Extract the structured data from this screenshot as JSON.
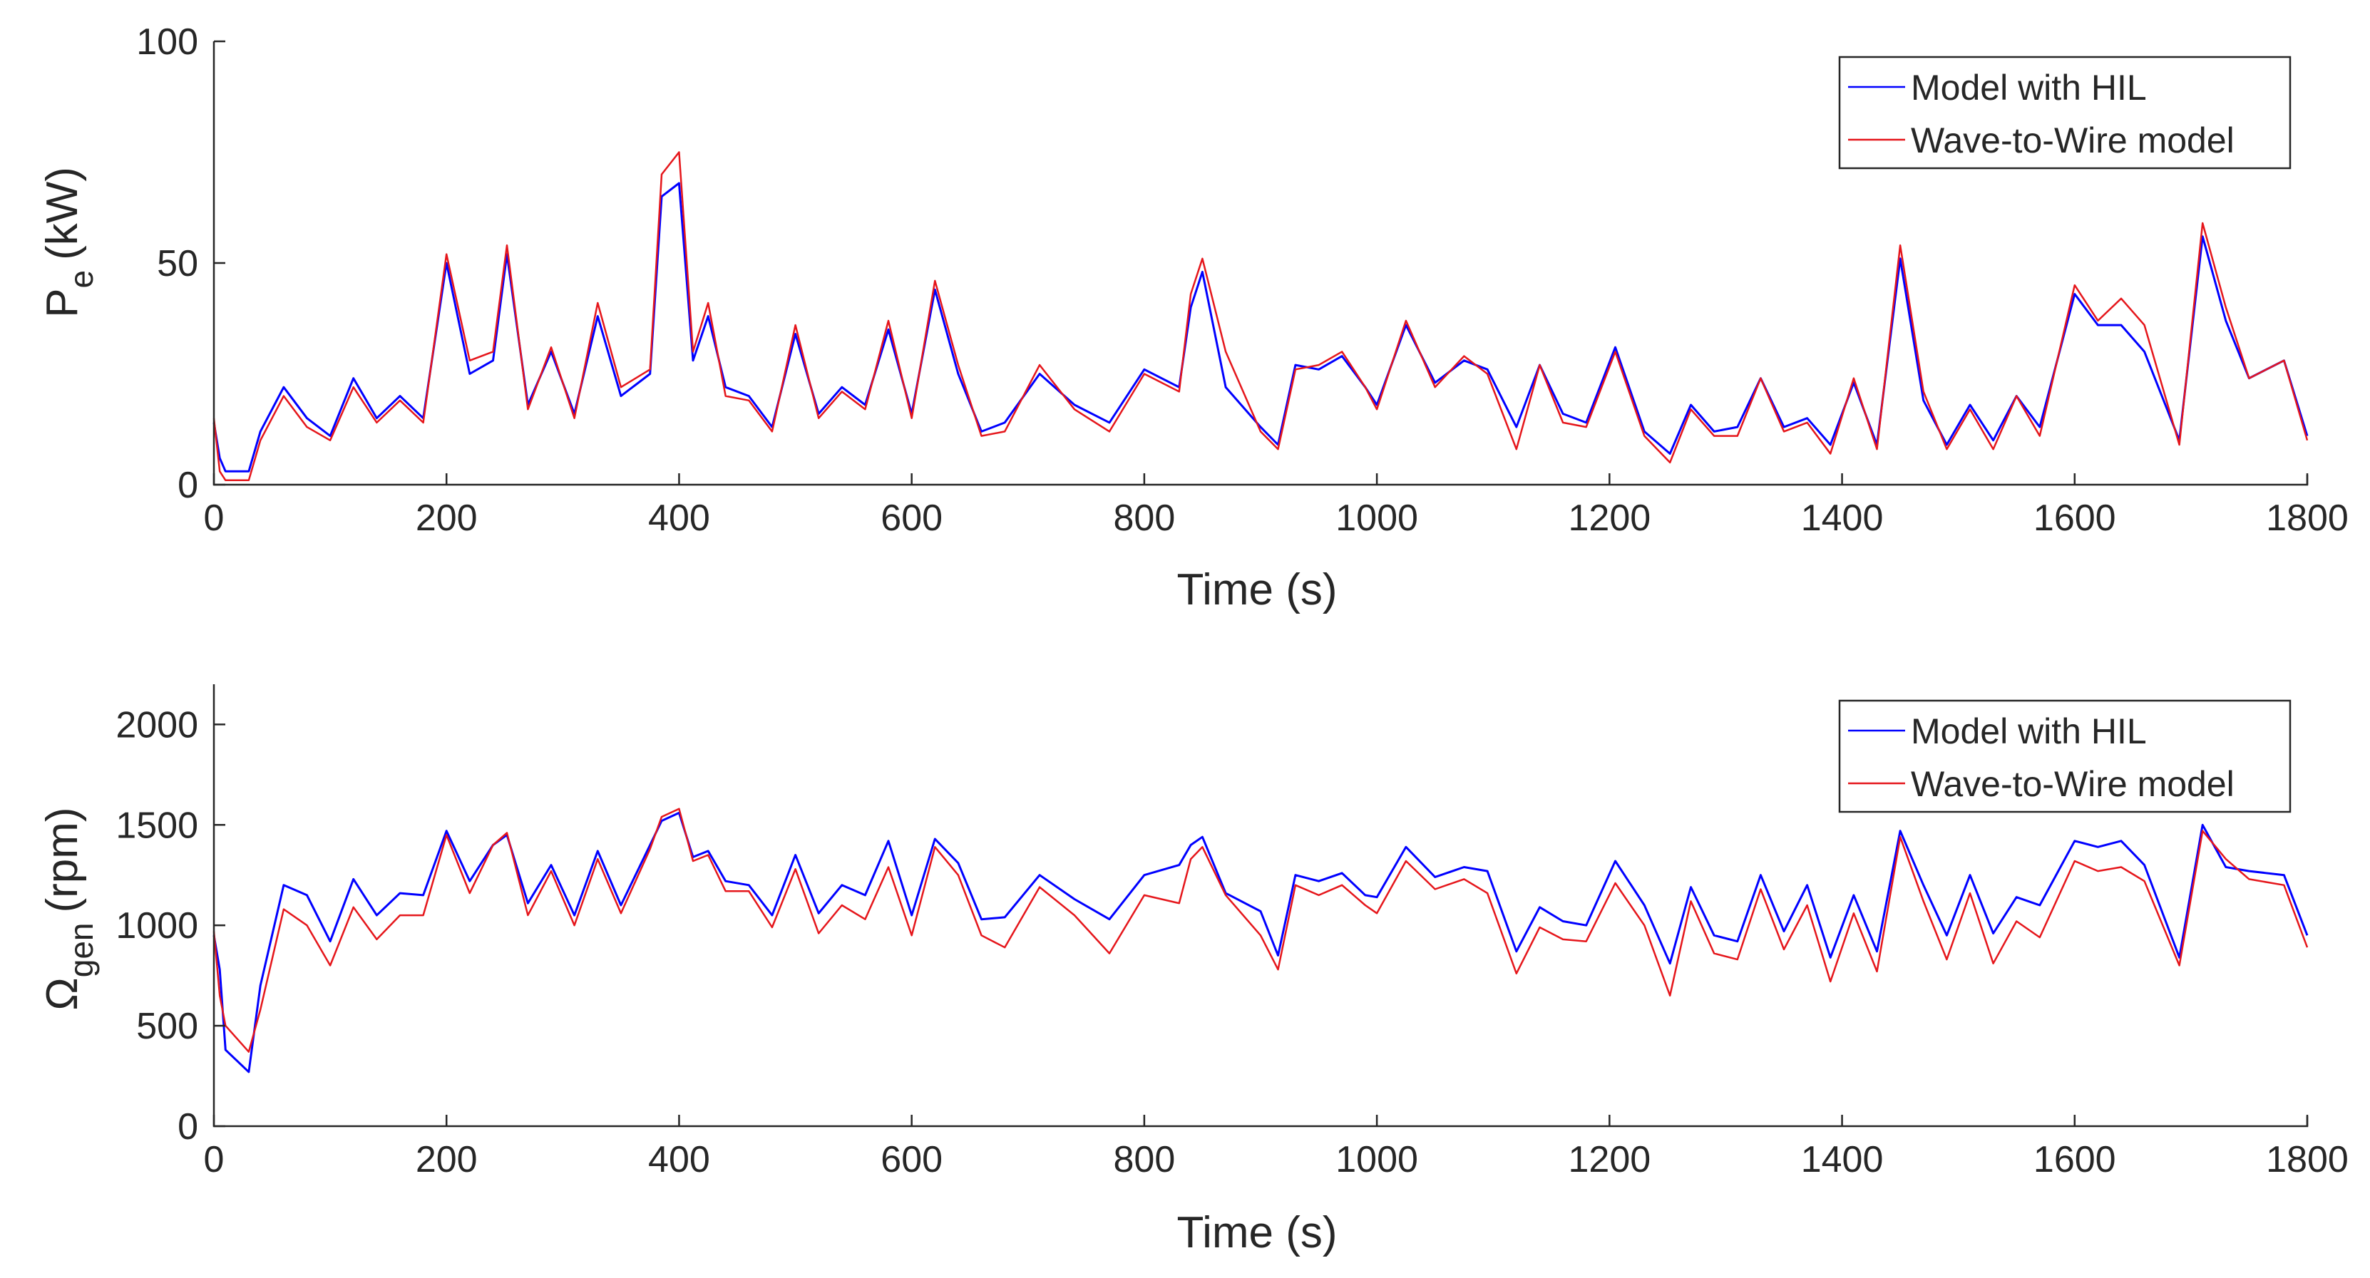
{
  "chart_data": [
    {
      "type": "line",
      "title": "",
      "xlabel": "Time (s)",
      "ylabel": "P",
      "ylabel_subscript": "e",
      "ylabel_unit": "(kW)",
      "xlim": [
        0,
        1800
      ],
      "ylim": [
        0,
        100
      ],
      "xticks": [
        0,
        200,
        400,
        600,
        800,
        1000,
        1200,
        1400,
        1600,
        1800
      ],
      "yticks": [
        0,
        50,
        100
      ],
      "xtick_labels": [
        "0",
        "200",
        "400",
        "600",
        "800",
        "1000",
        "1200",
        "1400",
        "1600",
        "1800"
      ],
      "ytick_labels": [
        "0",
        "50",
        "100"
      ],
      "legend_position": "top-right",
      "x": [
        0,
        5,
        10,
        30,
        40,
        60,
        80,
        100,
        120,
        140,
        160,
        180,
        200,
        220,
        240,
        252,
        270,
        290,
        310,
        330,
        350,
        375,
        385,
        400,
        412,
        425,
        440,
        460,
        480,
        500,
        520,
        540,
        560,
        580,
        600,
        620,
        640,
        660,
        680,
        710,
        740,
        770,
        800,
        830,
        840,
        850,
        870,
        900,
        915,
        930,
        950,
        970,
        990,
        1000,
        1025,
        1050,
        1075,
        1095,
        1120,
        1140,
        1160,
        1180,
        1205,
        1230,
        1252,
        1270,
        1290,
        1310,
        1330,
        1350,
        1370,
        1390,
        1410,
        1430,
        1450,
        1470,
        1490,
        1510,
        1530,
        1550,
        1570,
        1600,
        1620,
        1640,
        1660,
        1690,
        1710,
        1730,
        1750,
        1780,
        1800
      ],
      "series": [
        {
          "name": "Model with HIL",
          "color": "#0000ff",
          "values": [
            14,
            6,
            3,
            3,
            12,
            22,
            15,
            11,
            24,
            15,
            20,
            15,
            50,
            25,
            28,
            52,
            18,
            30,
            16,
            38,
            20,
            25,
            65,
            68,
            28,
            38,
            22,
            20,
            13,
            34,
            16,
            22,
            18,
            35,
            16,
            44,
            25,
            12,
            14,
            25,
            18,
            14,
            26,
            22,
            40,
            48,
            22,
            13,
            9,
            27,
            26,
            29,
            22,
            18,
            36,
            23,
            28,
            26,
            13,
            27,
            16,
            14,
            31,
            12,
            7,
            18,
            12,
            13,
            24,
            13,
            15,
            9,
            23,
            9,
            51,
            19,
            9,
            18,
            10,
            20,
            13,
            43,
            36,
            36,
            30,
            10,
            56,
            37,
            24,
            28,
            11
          ]
        },
        {
          "name": "Wave-to-Wire model",
          "color": "#e5161b",
          "values": [
            15,
            3,
            1,
            1,
            10,
            20,
            13,
            10,
            22,
            14,
            19,
            14,
            52,
            28,
            30,
            54,
            17,
            31,
            15,
            41,
            22,
            26,
            70,
            75,
            30,
            41,
            20,
            19,
            12,
            36,
            15,
            21,
            17,
            37,
            15,
            46,
            27,
            11,
            12,
            27,
            17,
            12,
            25,
            21,
            43,
            51,
            30,
            12,
            8,
            26,
            27,
            30,
            22,
            17,
            37,
            22,
            29,
            25,
            8,
            27,
            14,
            13,
            30,
            11,
            5,
            17,
            11,
            11,
            24,
            12,
            14,
            7,
            24,
            8,
            54,
            21,
            8,
            17,
            8,
            20,
            11,
            45,
            37,
            42,
            36,
            9,
            59,
            40,
            24,
            28,
            10
          ]
        }
      ]
    },
    {
      "type": "line",
      "title": "",
      "xlabel": "Time (s)",
      "ylabel": "Ω",
      "ylabel_subscript": "gen",
      "ylabel_unit": "(rpm)",
      "xlim": [
        0,
        1800
      ],
      "ylim": [
        0,
        2200
      ],
      "xticks": [
        0,
        200,
        400,
        600,
        800,
        1000,
        1200,
        1400,
        1600,
        1800
      ],
      "yticks": [
        0,
        500,
        1000,
        1500,
        2000
      ],
      "xtick_labels": [
        "0",
        "200",
        "400",
        "600",
        "800",
        "1000",
        "1200",
        "1400",
        "1600",
        "1800"
      ],
      "ytick_labels": [
        "0",
        "500",
        "1000",
        "1500",
        "2000"
      ],
      "legend_position": "top-right",
      "x": [
        0,
        5,
        10,
        30,
        40,
        60,
        80,
        100,
        120,
        140,
        160,
        180,
        200,
        220,
        240,
        252,
        270,
        290,
        310,
        330,
        350,
        375,
        385,
        400,
        412,
        425,
        440,
        460,
        480,
        500,
        520,
        540,
        560,
        580,
        600,
        620,
        640,
        660,
        680,
        710,
        740,
        770,
        800,
        830,
        840,
        850,
        870,
        900,
        915,
        930,
        950,
        970,
        990,
        1000,
        1025,
        1050,
        1075,
        1095,
        1120,
        1140,
        1160,
        1180,
        1205,
        1230,
        1252,
        1270,
        1290,
        1310,
        1330,
        1350,
        1370,
        1390,
        1410,
        1430,
        1450,
        1470,
        1490,
        1510,
        1530,
        1550,
        1570,
        1600,
        1620,
        1640,
        1660,
        1690,
        1710,
        1730,
        1750,
        1780,
        1800
      ],
      "series": [
        {
          "name": "Model with HIL",
          "color": "#0000ff",
          "values": [
            950,
            780,
            380,
            270,
            700,
            1200,
            1150,
            920,
            1230,
            1050,
            1160,
            1150,
            1470,
            1220,
            1400,
            1450,
            1110,
            1300,
            1050,
            1370,
            1100,
            1400,
            1520,
            1560,
            1340,
            1370,
            1220,
            1200,
            1050,
            1350,
            1060,
            1200,
            1150,
            1420,
            1050,
            1430,
            1310,
            1030,
            1040,
            1250,
            1130,
            1030,
            1250,
            1300,
            1400,
            1440,
            1160,
            1070,
            850,
            1250,
            1220,
            1260,
            1150,
            1140,
            1390,
            1240,
            1290,
            1270,
            870,
            1090,
            1020,
            1000,
            1320,
            1100,
            810,
            1190,
            950,
            920,
            1250,
            970,
            1200,
            840,
            1150,
            870,
            1470,
            1200,
            950,
            1250,
            960,
            1140,
            1100,
            1420,
            1390,
            1420,
            1300,
            840,
            1500,
            1290,
            1270,
            1250,
            950
          ]
        },
        {
          "name": "Wave-to-Wire model",
          "color": "#e5161b",
          "values": [
            970,
            650,
            500,
            370,
            580,
            1080,
            1000,
            800,
            1090,
            930,
            1050,
            1050,
            1450,
            1160,
            1400,
            1460,
            1050,
            1270,
            1000,
            1330,
            1060,
            1380,
            1540,
            1580,
            1320,
            1350,
            1170,
            1170,
            990,
            1280,
            960,
            1100,
            1030,
            1290,
            950,
            1390,
            1250,
            950,
            890,
            1190,
            1050,
            860,
            1150,
            1110,
            1330,
            1390,
            1150,
            950,
            780,
            1200,
            1150,
            1200,
            1100,
            1060,
            1320,
            1180,
            1230,
            1160,
            760,
            990,
            930,
            920,
            1210,
            1000,
            650,
            1120,
            860,
            830,
            1180,
            880,
            1100,
            720,
            1060,
            770,
            1440,
            1120,
            830,
            1160,
            810,
            1020,
            940,
            1320,
            1270,
            1290,
            1220,
            800,
            1470,
            1330,
            1230,
            1200,
            890
          ]
        }
      ]
    }
  ]
}
